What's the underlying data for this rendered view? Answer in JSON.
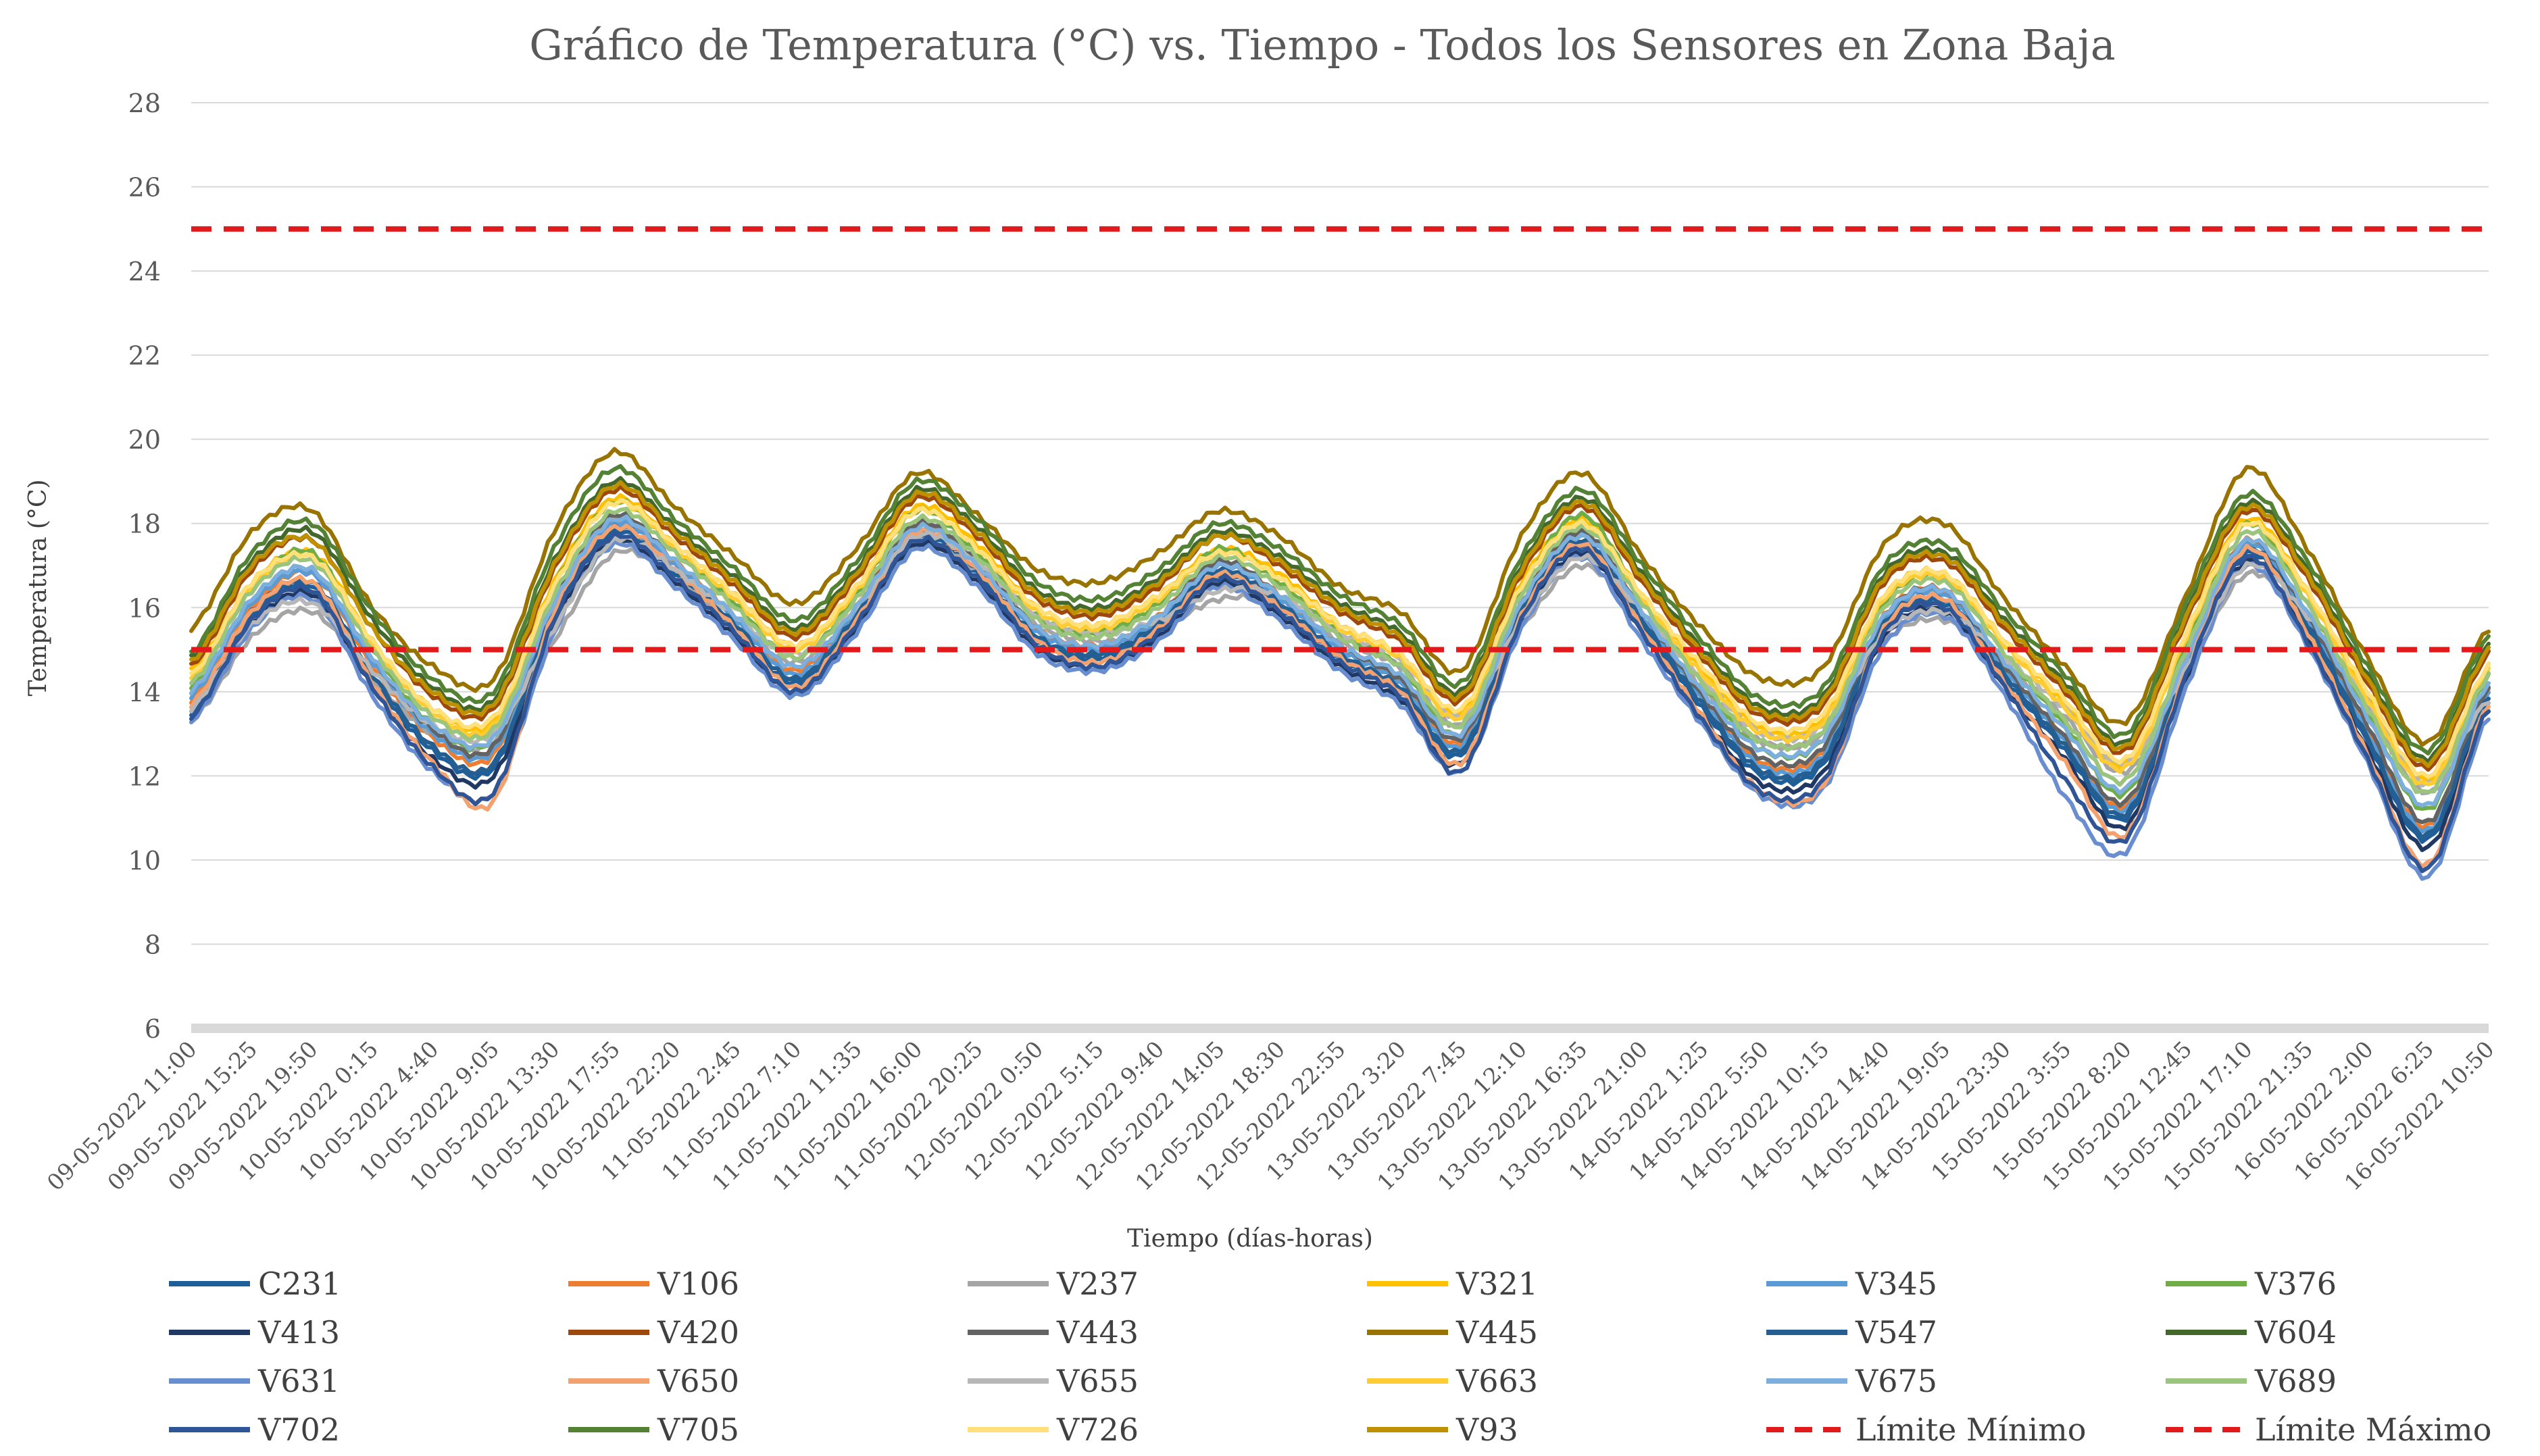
{
  "chart_data": {
    "type": "line",
    "title": "Gráfico de Temperatura (°C) vs. Tiempo - Todos los Sensores en Zona Baja",
    "xlabel": "Tiempo (días-horas)",
    "ylabel": "Temperatura (°C)",
    "ylim": [
      6,
      28
    ],
    "yticks": [
      6,
      8,
      10,
      12,
      14,
      16,
      18,
      20,
      22,
      24,
      26,
      28
    ],
    "grid": true,
    "legend_position": "bottom",
    "categories": [
      "09-05-2022 11:00",
      "09-05-2022 15:25",
      "09-05-2022 19:50",
      "10-05-2022 0:15",
      "10-05-2022 4:40",
      "10-05-2022 9:05",
      "10-05-2022 13:30",
      "10-05-2022 17:55",
      "10-05-2022 22:20",
      "11-05-2022 2:45",
      "11-05-2022 7:10",
      "11-05-2022 11:35",
      "11-05-2022 16:00",
      "11-05-2022 20:25",
      "12-05-2022 0:50",
      "12-05-2022 5:15",
      "12-05-2022 9:40",
      "12-05-2022 14:05",
      "12-05-2022 18:30",
      "12-05-2022 22:55",
      "13-05-2022 3:20",
      "13-05-2022 7:45",
      "13-05-2022 12:10",
      "13-05-2022 16:35",
      "13-05-2022 21:00",
      "14-05-2022 1:25",
      "14-05-2022 5:50",
      "14-05-2022 10:15",
      "14-05-2022 14:40",
      "14-05-2022 19:05",
      "14-05-2022 23:30",
      "15-05-2022 3:55",
      "15-05-2022 8:20",
      "15-05-2022 12:45",
      "15-05-2022 17:10",
      "15-05-2022 21:35",
      "16-05-2022 2:00",
      "16-05-2022 6:25",
      "16-05-2022 10:50"
    ],
    "limits": [
      {
        "name": "Límite Mínimo",
        "value": 15,
        "color": "#e31a1c"
      },
      {
        "name": "Límite Máximo",
        "value": 25,
        "color": "#e31a1c"
      }
    ],
    "series": [
      {
        "name": "C231",
        "color": "#1f5f99",
        "values": [
          13.5,
          15.8,
          16.5,
          14.3,
          12.6,
          12.2,
          15.8,
          17.8,
          16.8,
          15.5,
          14.2,
          15.7,
          17.7,
          16.8,
          15.2,
          14.8,
          15.5,
          16.8,
          16.0,
          14.8,
          14.0,
          12.5,
          15.8,
          17.5,
          15.6,
          13.6,
          12.0,
          12.3,
          15.5,
          16.1,
          14.3,
          12.6,
          11.0,
          14.5,
          17.3,
          15.5,
          12.8,
          10.5,
          13.8
        ]
      },
      {
        "name": "V106",
        "color": "#ed7d31",
        "values": [
          13.8,
          16.0,
          16.8,
          14.6,
          12.9,
          12.5,
          16.1,
          18.1,
          17.1,
          15.8,
          14.5,
          16.0,
          18.0,
          17.1,
          15.5,
          15.1,
          15.8,
          17.1,
          16.3,
          15.1,
          14.3,
          12.8,
          16.1,
          17.8,
          15.9,
          13.9,
          12.3,
          12.6,
          15.8,
          16.4,
          14.6,
          12.9,
          11.3,
          14.8,
          17.6,
          15.8,
          13.1,
          10.8,
          14.1
        ]
      },
      {
        "name": "V237",
        "color": "#a5a5a5",
        "values": [
          13.3,
          15.3,
          15.9,
          14.3,
          13.0,
          12.8,
          15.2,
          17.3,
          16.7,
          15.6,
          14.7,
          15.8,
          17.5,
          16.9,
          15.6,
          15.2,
          15.5,
          16.2,
          16.1,
          15.2,
          14.6,
          13.2,
          15.5,
          17.0,
          15.7,
          14.1,
          12.8,
          13.0,
          15.2,
          15.7,
          14.6,
          13.4,
          12.1,
          14.4,
          16.8,
          15.6,
          13.6,
          11.6,
          13.6
        ]
      },
      {
        "name": "V321",
        "color": "#ffc000",
        "values": [
          14.5,
          16.6,
          17.3,
          15.2,
          13.6,
          13.3,
          16.6,
          18.6,
          17.5,
          16.3,
          15.1,
          16.5,
          18.4,
          17.5,
          16.0,
          15.6,
          16.3,
          17.4,
          16.8,
          15.6,
          14.9,
          13.5,
          16.6,
          18.1,
          16.3,
          14.5,
          13.1,
          13.4,
          16.3,
          16.8,
          15.2,
          13.7,
          12.3,
          15.4,
          18.1,
          16.4,
          13.9,
          11.9,
          14.6
        ]
      },
      {
        "name": "V345",
        "color": "#5b9bd5",
        "values": [
          13.9,
          16.1,
          16.8,
          14.7,
          13.0,
          12.6,
          16.0,
          18.0,
          17.0,
          15.7,
          14.4,
          15.9,
          17.9,
          17.0,
          15.4,
          15.0,
          15.7,
          17.0,
          16.2,
          15.0,
          14.2,
          12.7,
          16.0,
          17.7,
          15.8,
          13.8,
          12.2,
          12.5,
          15.7,
          16.3,
          14.5,
          12.8,
          11.2,
          14.7,
          17.5,
          15.7,
          13.0,
          10.7,
          14.0
        ]
      },
      {
        "name": "V376",
        "color": "#70ad47",
        "values": [
          14.1,
          16.5,
          17.3,
          15.0,
          13.2,
          12.9,
          16.5,
          18.5,
          17.4,
          16.1,
          14.8,
          16.3,
          18.3,
          17.3,
          15.8,
          15.4,
          16.1,
          17.4,
          16.6,
          15.4,
          14.6,
          13.0,
          16.4,
          18.2,
          16.2,
          14.2,
          12.6,
          12.9,
          16.1,
          16.7,
          14.9,
          13.2,
          11.6,
          15.1,
          18.0,
          16.1,
          13.5,
          11.2,
          14.4
        ]
      },
      {
        "name": "V413",
        "color": "#203864",
        "values": [
          13.4,
          15.6,
          16.3,
          14.1,
          12.4,
          12.0,
          15.6,
          17.6,
          16.6,
          15.3,
          14.0,
          15.5,
          17.5,
          16.6,
          15.0,
          14.6,
          15.3,
          16.6,
          15.8,
          14.6,
          13.8,
          12.3,
          15.6,
          17.3,
          15.4,
          13.4,
          11.8,
          12.1,
          15.3,
          15.9,
          14.1,
          12.4,
          10.8,
          14.3,
          17.1,
          15.3,
          12.6,
          10.3,
          13.6
        ]
      },
      {
        "name": "V420",
        "color": "#9e480e",
        "values": [
          14.6,
          16.9,
          17.6,
          15.5,
          13.9,
          13.6,
          16.9,
          18.8,
          17.7,
          16.5,
          15.3,
          16.7,
          18.6,
          17.7,
          16.2,
          15.8,
          16.5,
          17.7,
          17.0,
          15.9,
          15.2,
          13.8,
          16.8,
          18.4,
          16.6,
          14.8,
          13.4,
          13.7,
          16.6,
          17.1,
          15.5,
          14.0,
          12.6,
          15.7,
          18.3,
          16.7,
          14.2,
          12.2,
          14.9
        ]
      },
      {
        "name": "V443",
        "color": "#636363",
        "values": [
          14.0,
          16.2,
          16.9,
          14.8,
          13.1,
          12.7,
          16.2,
          18.2,
          17.1,
          15.8,
          14.6,
          16.0,
          18.0,
          17.1,
          15.5,
          15.1,
          15.8,
          17.1,
          16.3,
          15.1,
          14.3,
          12.9,
          16.1,
          17.8,
          15.9,
          13.9,
          12.4,
          12.7,
          15.8,
          16.4,
          14.6,
          12.9,
          11.4,
          14.8,
          17.6,
          15.8,
          13.2,
          10.9,
          14.1
        ]
      },
      {
        "name": "V445",
        "color": "#997300",
        "values": [
          15.5,
          17.8,
          18.3,
          16.0,
          14.6,
          14.3,
          17.8,
          19.7,
          18.4,
          17.2,
          16.1,
          17.4,
          19.2,
          18.2,
          16.9,
          16.6,
          17.3,
          18.3,
          17.7,
          16.5,
          15.9,
          14.5,
          17.7,
          19.2,
          17.2,
          15.5,
          14.3,
          14.6,
          17.5,
          18.0,
          16.2,
          14.6,
          13.3,
          16.3,
          19.3,
          17.4,
          14.8,
          12.8,
          15.5
        ]
      },
      {
        "name": "V547",
        "color": "#255e91",
        "values": [
          13.6,
          15.9,
          16.6,
          14.4,
          12.7,
          12.3,
          15.9,
          17.9,
          16.9,
          15.6,
          14.3,
          15.8,
          17.8,
          16.9,
          15.3,
          14.9,
          15.6,
          16.9,
          16.1,
          14.9,
          14.1,
          12.6,
          15.9,
          17.6,
          15.7,
          13.7,
          12.1,
          12.4,
          15.6,
          16.2,
          14.4,
          12.7,
          11.1,
          14.6,
          17.4,
          15.6,
          12.9,
          10.6,
          13.9
        ]
      },
      {
        "name": "V604",
        "color": "#43682b",
        "values": [
          14.8,
          17.1,
          17.8,
          15.7,
          14.1,
          13.8,
          17.1,
          19.0,
          17.9,
          16.7,
          15.5,
          16.9,
          18.8,
          17.9,
          16.4,
          16.0,
          16.7,
          17.8,
          17.2,
          16.1,
          15.4,
          14.0,
          17.0,
          18.6,
          16.8,
          15.0,
          13.6,
          13.9,
          16.8,
          17.3,
          15.7,
          14.2,
          12.8,
          15.9,
          18.5,
          16.9,
          14.4,
          12.4,
          15.1
        ]
      },
      {
        "name": "V631",
        "color": "#698ed0",
        "values": [
          13.3,
          15.5,
          16.2,
          13.9,
          12.1,
          11.6,
          15.4,
          17.5,
          16.5,
          15.2,
          13.9,
          15.4,
          17.4,
          16.5,
          14.9,
          14.5,
          15.2,
          16.5,
          15.7,
          14.5,
          13.7,
          12.1,
          15.5,
          17.2,
          15.2,
          13.2,
          11.5,
          11.7,
          15.1,
          15.8,
          13.9,
          11.5,
          10.2,
          14.1,
          17.0,
          15.1,
          12.3,
          9.6,
          13.4
        ]
      },
      {
        "name": "V650",
        "color": "#f4a170",
        "values": [
          13.7,
          15.9,
          16.6,
          14.2,
          12.3,
          11.4,
          15.9,
          17.9,
          16.9,
          15.5,
          14.1,
          15.7,
          17.8,
          16.9,
          15.2,
          14.7,
          15.5,
          16.8,
          16.0,
          14.8,
          14.0,
          12.3,
          15.8,
          17.5,
          15.5,
          13.4,
          11.6,
          11.8,
          15.5,
          16.2,
          14.2,
          12.3,
          10.6,
          14.5,
          17.4,
          15.4,
          12.5,
          9.9,
          13.7
        ]
      },
      {
        "name": "V655",
        "color": "#b7b7b7",
        "values": [
          13.6,
          15.6,
          16.1,
          14.5,
          13.2,
          13.0,
          15.5,
          17.6,
          16.9,
          15.8,
          14.9,
          16.0,
          17.7,
          17.1,
          15.8,
          15.4,
          15.7,
          16.4,
          16.3,
          15.4,
          14.8,
          13.4,
          15.7,
          17.2,
          15.9,
          14.3,
          13.0,
          13.2,
          15.4,
          15.9,
          14.8,
          13.6,
          12.3,
          14.6,
          17.0,
          15.8,
          13.8,
          11.8,
          13.8
        ]
      },
      {
        "name": "V663",
        "color": "#ffcd33",
        "values": [
          14.3,
          16.5,
          17.2,
          15.1,
          13.5,
          13.2,
          16.5,
          18.5,
          17.4,
          16.2,
          15.0,
          16.4,
          18.3,
          17.4,
          15.9,
          15.5,
          16.2,
          17.3,
          16.7,
          15.5,
          14.8,
          13.4,
          16.5,
          18.0,
          16.2,
          14.4,
          13.0,
          13.3,
          16.2,
          16.7,
          15.1,
          13.6,
          12.2,
          15.3,
          18.0,
          16.3,
          13.8,
          11.8,
          14.5
        ]
      },
      {
        "name": "V675",
        "color": "#7cafdd",
        "values": [
          14.0,
          16.2,
          16.9,
          14.8,
          13.2,
          12.9,
          16.1,
          18.1,
          17.1,
          15.8,
          14.6,
          16.0,
          17.9,
          17.0,
          15.5,
          15.1,
          15.8,
          17.0,
          16.3,
          15.1,
          14.4,
          13.0,
          16.1,
          17.7,
          15.9,
          14.0,
          12.6,
          12.9,
          15.8,
          16.4,
          14.7,
          13.1,
          11.7,
          14.8,
          17.6,
          15.9,
          13.4,
          11.3,
          14.2
        ]
      },
      {
        "name": "V689",
        "color": "#9bc57d",
        "values": [
          14.2,
          16.4,
          17.1,
          15.0,
          13.4,
          13.1,
          16.3,
          18.3,
          17.3,
          16.0,
          14.8,
          16.2,
          18.1,
          17.2,
          15.7,
          15.3,
          16.0,
          17.2,
          16.5,
          15.3,
          14.6,
          13.2,
          16.3,
          17.9,
          16.1,
          14.2,
          12.8,
          13.1,
          16.0,
          16.6,
          14.9,
          13.3,
          11.9,
          15.0,
          17.8,
          16.1,
          13.6,
          11.6,
          14.4
        ]
      },
      {
        "name": "V702",
        "color": "#2f5597",
        "values": [
          13.4,
          15.7,
          16.4,
          14.1,
          12.2,
          11.6,
          15.7,
          17.7,
          16.7,
          15.4,
          14.0,
          15.6,
          17.6,
          16.7,
          15.1,
          14.6,
          15.4,
          16.7,
          15.9,
          14.7,
          13.9,
          12.1,
          15.7,
          17.4,
          15.4,
          13.3,
          11.6,
          11.9,
          15.4,
          16.0,
          14.1,
          11.9,
          10.5,
          14.4,
          17.2,
          15.2,
          12.4,
          9.8,
          13.6
        ]
      },
      {
        "name": "V705",
        "color": "#548235",
        "values": [
          14.9,
          17.3,
          18.0,
          15.9,
          14.3,
          14.0,
          17.4,
          19.3,
          18.1,
          16.9,
          15.7,
          17.1,
          19.0,
          18.1,
          16.6,
          16.2,
          16.9,
          18.0,
          17.4,
          16.3,
          15.6,
          14.2,
          17.2,
          18.8,
          17.0,
          15.2,
          13.8,
          14.1,
          17.0,
          17.5,
          15.9,
          14.4,
          13.0,
          16.1,
          18.7,
          17.1,
          14.6,
          12.6,
          15.3
        ]
      },
      {
        "name": "V726",
        "color": "#ffe07a",
        "values": [
          14.4,
          16.6,
          17.2,
          15.2,
          13.6,
          13.4,
          16.5,
          18.5,
          17.5,
          16.3,
          15.1,
          16.5,
          18.3,
          17.4,
          16.0,
          15.6,
          16.3,
          17.3,
          16.7,
          15.6,
          14.9,
          13.6,
          16.5,
          18.0,
          16.3,
          14.6,
          13.2,
          13.5,
          16.3,
          16.8,
          15.2,
          13.8,
          12.4,
          15.4,
          18.0,
          16.4,
          14.0,
          12.0,
          14.6
        ]
      },
      {
        "name": "V93",
        "color": "#bf9000",
        "values": [
          14.7,
          17.0,
          17.6,
          15.5,
          14.0,
          13.7,
          17.0,
          18.9,
          17.8,
          16.6,
          15.4,
          16.8,
          18.7,
          17.8,
          16.3,
          15.9,
          16.6,
          17.7,
          17.1,
          16.0,
          15.3,
          13.9,
          16.9,
          18.5,
          16.7,
          14.9,
          13.5,
          13.8,
          16.7,
          17.2,
          15.6,
          14.1,
          12.7,
          15.8,
          18.4,
          16.8,
          14.3,
          12.3,
          15.0
        ]
      }
    ]
  },
  "legend": {
    "items": [
      "C231",
      "V106",
      "V237",
      "V321",
      "V345",
      "V376",
      "V413",
      "V420",
      "V443",
      "V445",
      "V547",
      "V604",
      "V631",
      "V650",
      "V655",
      "V663",
      "V675",
      "V689",
      "V702",
      "V705",
      "V726",
      "V93",
      "Límite Mínimo",
      "Límite Máximo"
    ]
  }
}
